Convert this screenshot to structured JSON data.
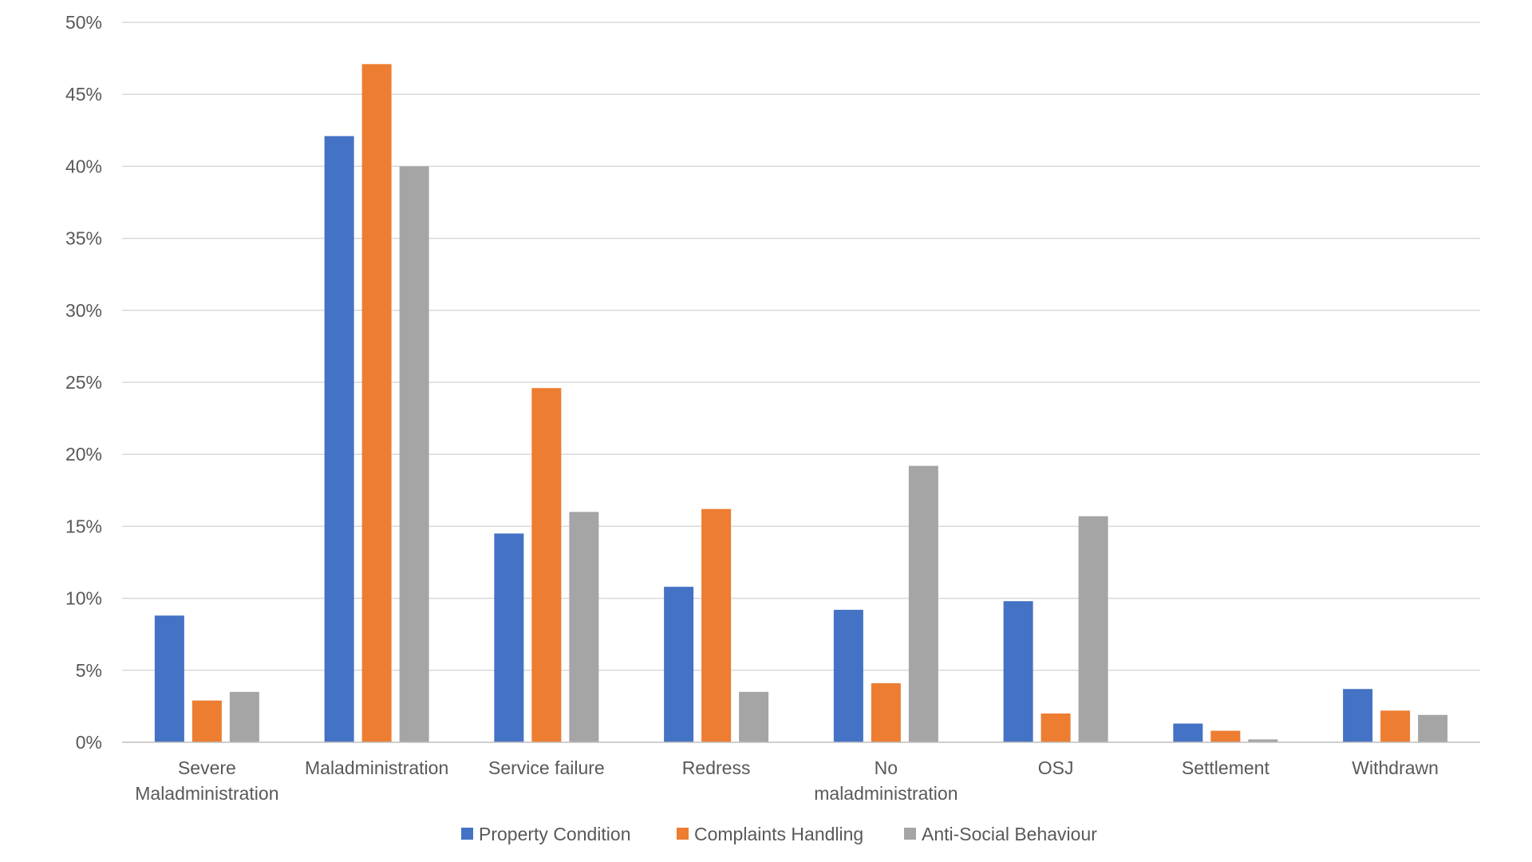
{
  "chart_data": {
    "type": "bar",
    "title": "",
    "xlabel": "",
    "ylabel": "",
    "ylim": [
      0,
      50
    ],
    "yticks": [
      0,
      5,
      10,
      15,
      20,
      25,
      30,
      35,
      40,
      45,
      50
    ],
    "ytick_labels": [
      "0%",
      "5%",
      "10%",
      "15%",
      "20%",
      "25%",
      "30%",
      "35%",
      "40%",
      "45%",
      "50%"
    ],
    "grid": true,
    "legend_position": "bottom",
    "categories": [
      [
        "Severe",
        "Maladministration"
      ],
      [
        "Maladministration"
      ],
      [
        "Service failure"
      ],
      [
        "Redress"
      ],
      [
        "No",
        "maladministration"
      ],
      [
        "OSJ"
      ],
      [
        "Settlement"
      ],
      [
        "Withdrawn"
      ]
    ],
    "series": [
      {
        "name": "Property Condition",
        "color": "#4472c4",
        "values": [
          8.8,
          42.1,
          14.5,
          10.8,
          9.2,
          9.8,
          1.3,
          3.7
        ]
      },
      {
        "name": "Complaints Handling",
        "color": "#ed7d31",
        "values": [
          2.9,
          47.1,
          24.6,
          16.2,
          4.1,
          2.0,
          0.8,
          2.2
        ]
      },
      {
        "name": "Anti-Social Behaviour",
        "color": "#a5a5a5",
        "values": [
          3.5,
          40.0,
          16.0,
          3.5,
          19.2,
          15.7,
          0.2,
          1.9
        ]
      }
    ]
  }
}
